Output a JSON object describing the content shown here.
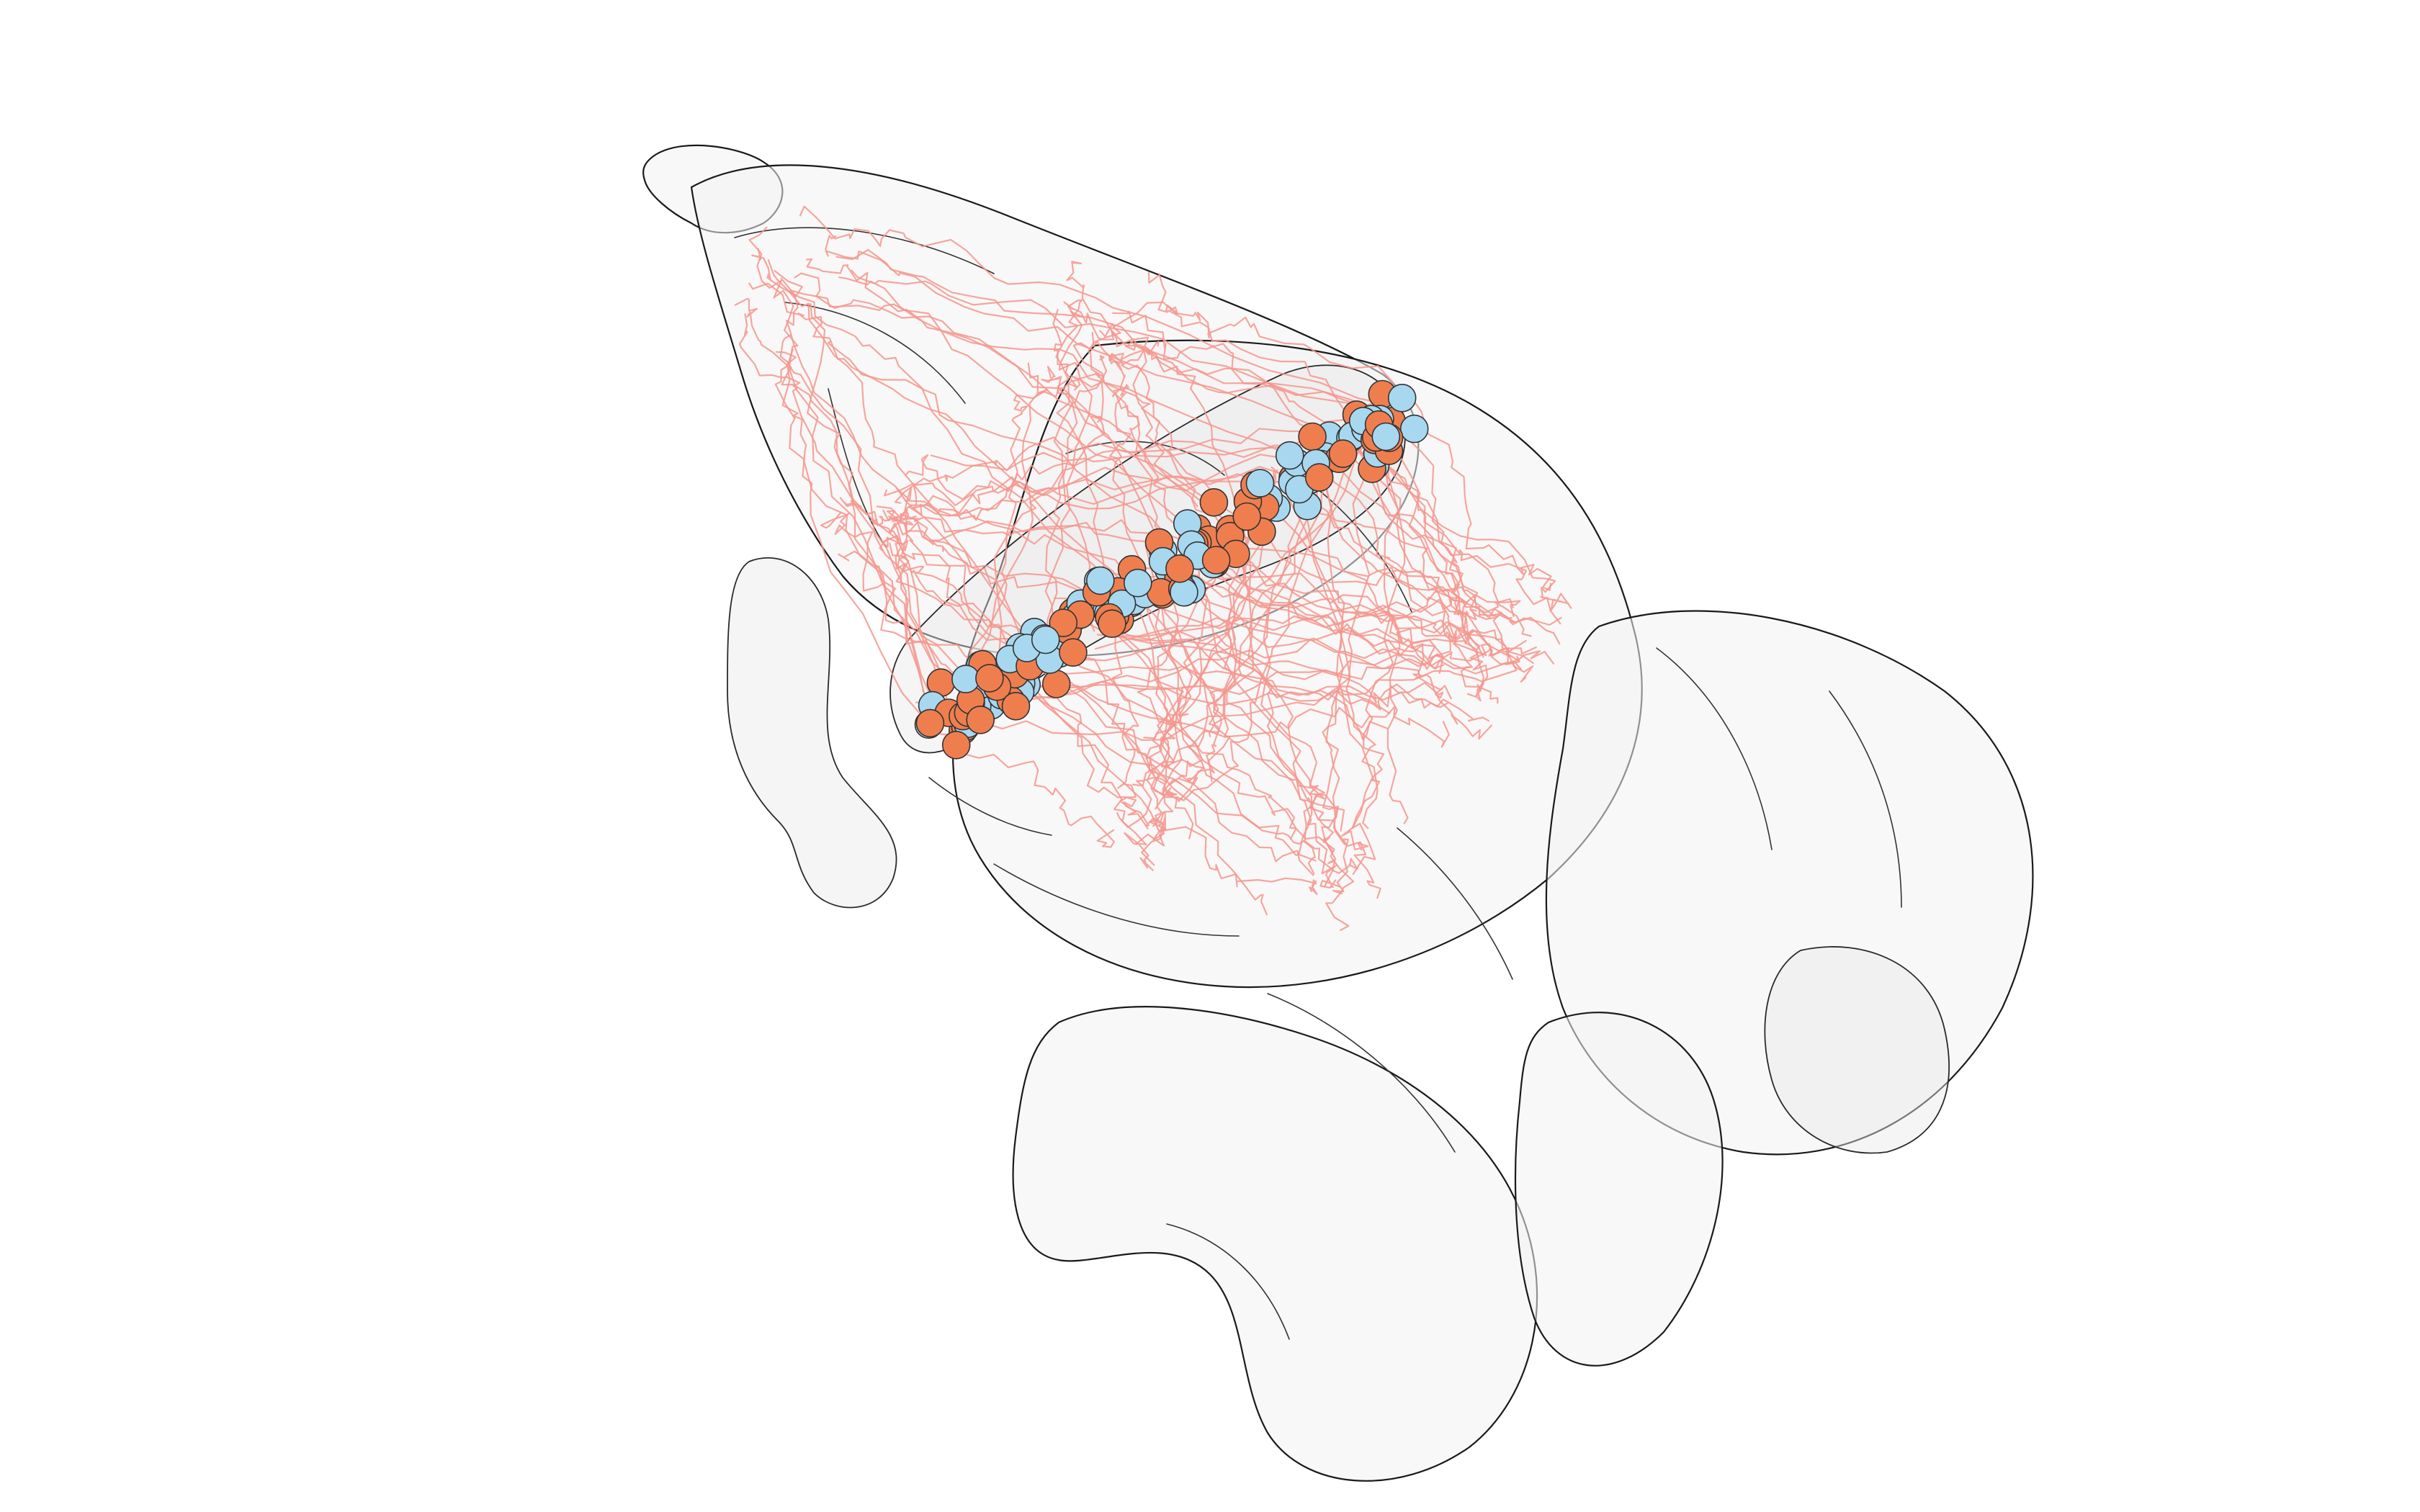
{
  "colors": {
    "background": "#ffffff",
    "region_fill": "#f2f2f2",
    "region_outline": "#1a1a1a",
    "axon": "#f4978e",
    "soma_group_a": "#ef7e4f",
    "soma_group_b": "#a7d8f0"
  }
}
